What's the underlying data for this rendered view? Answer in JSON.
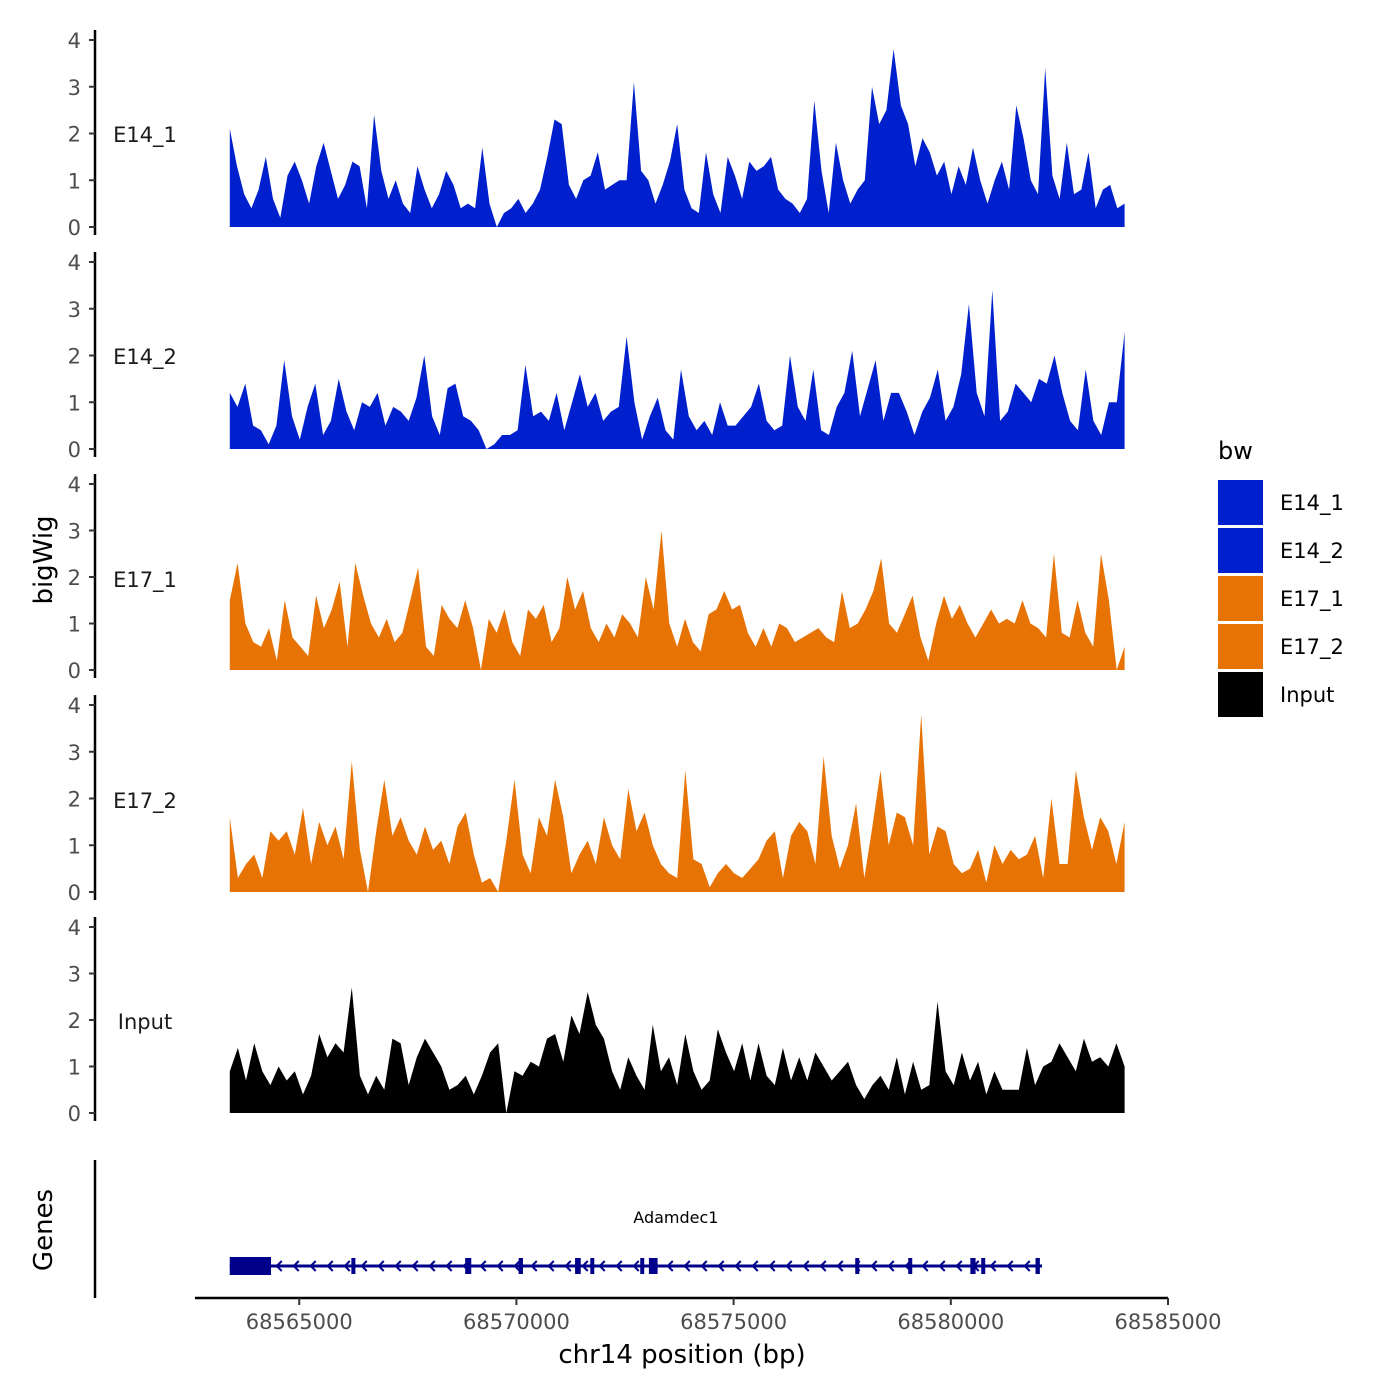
{
  "chart_data": {
    "type": "area",
    "xlabel": "chr14 position (bp)",
    "ylabel": "bigWig",
    "genes_label": "Genes",
    "xlim": [
      68562600,
      68585000
    ],
    "x_ticks": [
      68565000,
      68570000,
      68575000,
      68580000,
      68585000
    ],
    "x_tick_labels": [
      "68565000",
      "68570000",
      "68575000",
      "68580000",
      "68585000"
    ],
    "ylim": [
      0,
      4
    ],
    "y_ticks": [
      0,
      1,
      2,
      3,
      4
    ],
    "y_tick_labels": [
      "0",
      "1",
      "2",
      "3",
      "4"
    ],
    "x_range": [
      68563400,
      68584000
    ],
    "legend": {
      "title": "bw",
      "position": "right",
      "entries": [
        {
          "label": "E14_1",
          "color": "#0020CD"
        },
        {
          "label": "E14_2",
          "color": "#0020CD"
        },
        {
          "label": "E17_1",
          "color": "#E87305"
        },
        {
          "label": "E17_2",
          "color": "#E87305"
        },
        {
          "label": "Input",
          "color": "#000000"
        }
      ]
    },
    "series": [
      {
        "name": "E14_1",
        "color": "#0020CD",
        "values": [
          2.1,
          1.3,
          0.7,
          0.4,
          0.8,
          1.5,
          0.6,
          0.2,
          1.1,
          1.4,
          1.0,
          0.5,
          1.3,
          1.8,
          1.2,
          0.6,
          0.9,
          1.4,
          1.3,
          0.4,
          2.4,
          1.2,
          0.6,
          1.0,
          0.5,
          0.3,
          1.3,
          0.8,
          0.4,
          0.7,
          1.2,
          0.9,
          0.4,
          0.5,
          0.4,
          1.7,
          0.5,
          0.0,
          0.3,
          0.4,
          0.6,
          0.3,
          0.5,
          0.8,
          1.5,
          2.3,
          2.2,
          0.9,
          0.6,
          1.0,
          1.1,
          1.6,
          0.8,
          0.9,
          1.0,
          1.0,
          3.1,
          1.2,
          1.0,
          0.5,
          0.9,
          1.4,
          2.2,
          0.8,
          0.4,
          0.3,
          1.6,
          0.7,
          0.3,
          1.5,
          1.1,
          0.6,
          1.4,
          1.2,
          1.3,
          1.5,
          0.8,
          0.6,
          0.5,
          0.3,
          0.6,
          2.7,
          1.2,
          0.3,
          1.8,
          1.0,
          0.5,
          0.8,
          1.0,
          3.0,
          2.2,
          2.5,
          3.8,
          2.6,
          2.2,
          1.3,
          1.9,
          1.6,
          1.1,
          1.4,
          0.7,
          1.3,
          0.9,
          1.7,
          1.0,
          0.5,
          1.0,
          1.4,
          0.8,
          2.6,
          1.9,
          1.0,
          0.7,
          3.4,
          1.1,
          0.6,
          1.8,
          0.7,
          0.8,
          1.6,
          0.4,
          0.8,
          0.9,
          0.4,
          0.5
        ]
      },
      {
        "name": "E14_2",
        "color": "#0020CD",
        "values": [
          1.2,
          0.9,
          1.4,
          0.5,
          0.4,
          0.1,
          0.5,
          1.9,
          0.7,
          0.2,
          0.9,
          1.4,
          0.3,
          0.6,
          1.5,
          0.8,
          0.4,
          1.0,
          0.9,
          1.2,
          0.5,
          0.9,
          0.8,
          0.6,
          1.1,
          2.0,
          0.7,
          0.3,
          1.3,
          1.4,
          0.7,
          0.6,
          0.4,
          0.0,
          0.1,
          0.3,
          0.3,
          0.4,
          1.8,
          0.7,
          0.8,
          0.6,
          1.2,
          0.4,
          1.0,
          1.6,
          0.9,
          1.2,
          0.6,
          0.8,
          0.9,
          2.4,
          1.0,
          0.2,
          0.7,
          1.1,
          0.4,
          0.2,
          1.7,
          0.7,
          0.4,
          0.6,
          0.3,
          1.0,
          0.5,
          0.5,
          0.7,
          0.9,
          1.4,
          0.6,
          0.4,
          0.5,
          2.0,
          0.9,
          0.6,
          1.7,
          0.4,
          0.3,
          0.9,
          1.2,
          2.1,
          0.7,
          1.3,
          1.9,
          0.6,
          1.2,
          1.2,
          0.8,
          0.3,
          0.8,
          1.1,
          1.7,
          0.6,
          0.9,
          1.6,
          3.1,
          1.2,
          0.7,
          3.4,
          0.6,
          0.8,
          1.4,
          1.2,
          1.0,
          1.5,
          1.4,
          2.0,
          1.2,
          0.6,
          0.4,
          1.7,
          0.6,
          0.3,
          1.0,
          1.0,
          2.5
        ]
      },
      {
        "name": "E17_1",
        "color": "#E87305",
        "values": [
          1.5,
          2.3,
          1.0,
          0.6,
          0.5,
          0.9,
          0.2,
          1.5,
          0.7,
          0.5,
          0.3,
          1.6,
          0.9,
          1.3,
          1.9,
          0.5,
          2.3,
          1.6,
          1.0,
          0.7,
          1.1,
          0.6,
          0.8,
          1.5,
          2.2,
          0.5,
          0.3,
          1.4,
          1.1,
          0.9,
          1.5,
          0.9,
          0.0,
          1.1,
          0.8,
          1.3,
          0.6,
          0.3,
          1.3,
          1.1,
          1.4,
          0.6,
          0.9,
          2.0,
          1.3,
          1.7,
          0.9,
          0.6,
          1.0,
          0.7,
          1.2,
          1.0,
          0.7,
          2.0,
          1.3,
          3.0,
          1.0,
          0.5,
          1.1,
          0.6,
          0.4,
          1.2,
          1.3,
          1.7,
          1.3,
          1.4,
          0.8,
          0.5,
          0.9,
          0.5,
          1.0,
          0.9,
          0.6,
          0.7,
          0.8,
          0.9,
          0.7,
          0.6,
          1.7,
          0.9,
          1.0,
          1.3,
          1.7,
          2.4,
          1.0,
          0.8,
          1.2,
          1.6,
          0.7,
          0.2,
          1.0,
          1.6,
          1.1,
          1.4,
          1.0,
          0.7,
          1.0,
          1.3,
          1.0,
          1.1,
          1.0,
          1.5,
          1.0,
          0.9,
          0.7,
          2.5,
          0.8,
          0.7,
          1.5,
          0.8,
          0.5,
          2.5,
          1.5,
          0.0,
          0.5
        ]
      },
      {
        "name": "E17_2",
        "color": "#E87305",
        "values": [
          1.6,
          0.3,
          0.6,
          0.8,
          0.3,
          1.3,
          1.1,
          1.3,
          0.8,
          1.8,
          0.6,
          1.5,
          1.0,
          1.4,
          0.7,
          2.8,
          0.9,
          0.0,
          1.3,
          2.4,
          1.2,
          1.6,
          1.1,
          0.8,
          1.4,
          0.9,
          1.1,
          0.6,
          1.4,
          1.7,
          0.8,
          0.2,
          0.3,
          0.0,
          1.1,
          2.4,
          0.8,
          0.4,
          1.6,
          1.2,
          2.4,
          1.6,
          0.4,
          0.8,
          1.1,
          0.6,
          1.6,
          1.0,
          0.7,
          2.2,
          1.3,
          1.7,
          1.0,
          0.6,
          0.4,
          0.3,
          2.6,
          0.7,
          0.6,
          0.1,
          0.4,
          0.6,
          0.4,
          0.3,
          0.5,
          0.7,
          1.1,
          1.3,
          0.3,
          1.2,
          1.5,
          1.3,
          0.6,
          2.9,
          1.2,
          0.5,
          1.0,
          1.9,
          0.3,
          1.4,
          2.6,
          1.0,
          1.7,
          1.6,
          1.0,
          3.8,
          0.8,
          1.4,
          1.3,
          0.6,
          0.4,
          0.5,
          0.9,
          0.2,
          1.0,
          0.6,
          0.9,
          0.7,
          0.8,
          1.2,
          0.3,
          2.0,
          0.6,
          0.6,
          2.6,
          1.6,
          0.9,
          1.6,
          1.3,
          0.6,
          1.5
        ]
      },
      {
        "name": "Input",
        "color": "#000000",
        "values": [
          0.9,
          1.4,
          0.7,
          1.5,
          0.9,
          0.6,
          1.0,
          0.7,
          0.9,
          0.4,
          0.8,
          1.7,
          1.2,
          1.5,
          1.3,
          2.7,
          0.8,
          0.4,
          0.8,
          0.5,
          1.6,
          1.5,
          0.6,
          1.2,
          1.6,
          1.3,
          1.0,
          0.5,
          0.6,
          0.8,
          0.4,
          0.8,
          1.3,
          1.5,
          0.0,
          0.9,
          0.8,
          1.1,
          1.0,
          1.6,
          1.7,
          1.1,
          2.1,
          1.7,
          2.6,
          1.9,
          1.6,
          0.9,
          0.5,
          1.2,
          0.8,
          0.5,
          1.9,
          0.9,
          1.2,
          0.6,
          1.7,
          0.9,
          0.5,
          0.7,
          1.8,
          1.3,
          0.9,
          1.5,
          0.7,
          1.5,
          0.8,
          0.6,
          1.4,
          0.7,
          1.2,
          0.7,
          1.3,
          1.0,
          0.7,
          0.9,
          1.1,
          0.6,
          0.3,
          0.6,
          0.8,
          0.5,
          1.2,
          0.4,
          1.1,
          0.5,
          0.6,
          2.4,
          0.9,
          0.6,
          1.3,
          0.7,
          1.1,
          0.4,
          0.9,
          0.5,
          0.5,
          0.5,
          1.4,
          0.6,
          1.0,
          1.1,
          1.5,
          1.2,
          0.9,
          1.6,
          1.1,
          1.2,
          1.0,
          1.5,
          1.0
        ]
      }
    ],
    "gene": {
      "name": "Adamdec1",
      "color": "#00008B",
      "strand": "-",
      "start": 68563400,
      "end": 68582100,
      "exons": [
        [
          68563400,
          68564350
        ],
        [
          68566200,
          68566250
        ],
        [
          68568820,
          68568960
        ],
        [
          68570050,
          68570150
        ],
        [
          68571350,
          68571480
        ],
        [
          68571700,
          68571760
        ],
        [
          68572850,
          68572900
        ],
        [
          68573050,
          68573250
        ],
        [
          68577800,
          68577850
        ],
        [
          68579020,
          68579060
        ],
        [
          68580450,
          68580570
        ],
        [
          68580700,
          68580740
        ],
        [
          68581950,
          68582050
        ]
      ]
    }
  }
}
